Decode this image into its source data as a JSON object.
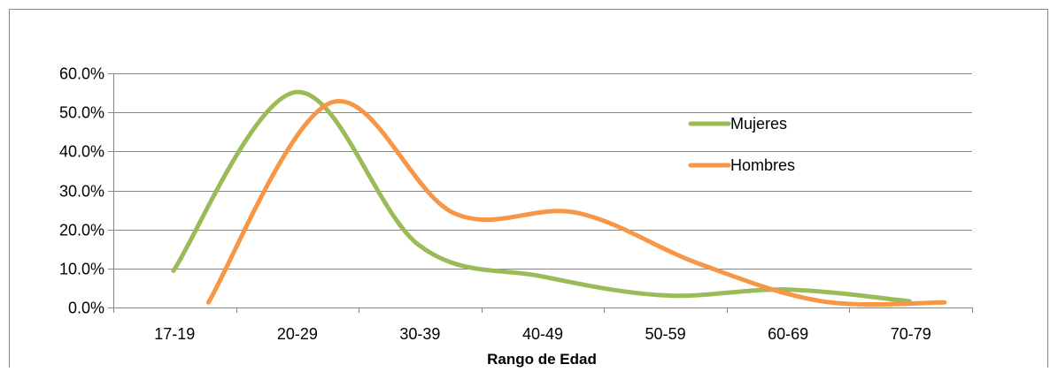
{
  "chart_data": {
    "type": "line",
    "title": "",
    "xlabel": "Rango de Edad",
    "ylabel": "",
    "categories": [
      "17-19",
      "20-29",
      "30-39",
      "40-49",
      "50-59",
      "60-69",
      "70-79"
    ],
    "y_tick_labels": [
      "0.0%",
      "10.0%",
      "20.0%",
      "30.0%",
      "40.0%",
      "50.0%",
      "60.0%"
    ],
    "ylim": [
      0,
      60
    ],
    "y_unit": "%",
    "grid": true,
    "legend_position": "right",
    "series": [
      {
        "name": "Mujeres",
        "color": "#9BBB59",
        "smooth": true,
        "points": [
          {
            "x": "17-19",
            "y": 9.4
          },
          {
            "x": "20-29",
            "y": 55.2
          },
          {
            "x": "30-39",
            "y": 16.0
          },
          {
            "x": "40-49",
            "y": 8.0
          },
          {
            "x": "50-59",
            "y": 3.1
          },
          {
            "x": "60-69",
            "y": 4.6
          },
          {
            "x": "70-79",
            "y": 1.6
          }
        ]
      },
      {
        "name": "Hombres",
        "color": "#F79646",
        "smooth": true,
        "points": [
          {
            "x": "17-19",
            "y": 1.3
          },
          {
            "x": "20-29",
            "y": 52.5
          },
          {
            "x": "30-39",
            "y": 24.2
          },
          {
            "x": "40-49",
            "y": 24.3
          },
          {
            "x": "50-59",
            "y": 11.2
          },
          {
            "x": "60-69",
            "y": 1.6
          },
          {
            "x": "70-79",
            "y": 1.3
          }
        ]
      }
    ]
  }
}
